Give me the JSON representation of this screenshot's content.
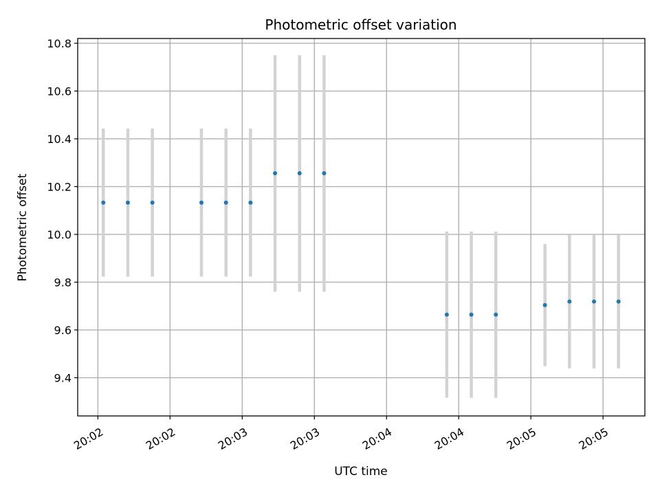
{
  "chart_data": {
    "type": "scatter",
    "title": "Photometric offset variation",
    "xlabel": "UTC time",
    "ylabel": "Photometric offset",
    "ylim": [
      9.24,
      10.82
    ],
    "xlim": [
      -0.36,
      15.36
    ],
    "yticks": [
      9.4,
      9.6,
      9.8,
      10.0,
      10.2,
      10.4,
      10.6,
      10.8
    ],
    "ytick_labels": [
      "9.4",
      "9.6",
      "9.8",
      "10.0",
      "10.2",
      "10.4",
      "10.6",
      "10.8"
    ],
    "xticks": [
      0.2,
      2.2,
      4.2,
      6.2,
      8.2,
      10.2,
      12.2,
      14.2
    ],
    "xtick_labels": [
      "20:02",
      "20:02",
      "20:03",
      "20:03",
      "20:04",
      "20:04",
      "20:05",
      "20:05"
    ],
    "grid": true,
    "marker_color": "#1f77b4",
    "errorbar_color": "#d3d3d3",
    "points": [
      {
        "x": 0.35,
        "y": 10.133,
        "ylow": 9.823,
        "yhigh": 10.443
      },
      {
        "x": 1.03,
        "y": 10.133,
        "ylow": 9.823,
        "yhigh": 10.443
      },
      {
        "x": 1.71,
        "y": 10.133,
        "ylow": 9.823,
        "yhigh": 10.443
      },
      {
        "x": 3.07,
        "y": 10.133,
        "ylow": 9.823,
        "yhigh": 10.443
      },
      {
        "x": 3.75,
        "y": 10.133,
        "ylow": 9.823,
        "yhigh": 10.443
      },
      {
        "x": 4.43,
        "y": 10.133,
        "ylow": 9.823,
        "yhigh": 10.443
      },
      {
        "x": 5.11,
        "y": 10.256,
        "ylow": 9.76,
        "yhigh": 10.75
      },
      {
        "x": 5.79,
        "y": 10.256,
        "ylow": 9.76,
        "yhigh": 10.75
      },
      {
        "x": 6.47,
        "y": 10.256,
        "ylow": 9.76,
        "yhigh": 10.75
      },
      {
        "x": 9.87,
        "y": 9.664,
        "ylow": 9.316,
        "yhigh": 10.012
      },
      {
        "x": 10.55,
        "y": 9.664,
        "ylow": 9.316,
        "yhigh": 10.012
      },
      {
        "x": 11.23,
        "y": 9.664,
        "ylow": 9.316,
        "yhigh": 10.012
      },
      {
        "x": 12.59,
        "y": 9.704,
        "ylow": 9.448,
        "yhigh": 9.96
      },
      {
        "x": 13.27,
        "y": 9.719,
        "ylow": 9.439,
        "yhigh": 9.999
      },
      {
        "x": 13.95,
        "y": 9.719,
        "ylow": 9.439,
        "yhigh": 9.999
      },
      {
        "x": 14.63,
        "y": 9.719,
        "ylow": 9.439,
        "yhigh": 9.999
      }
    ]
  }
}
